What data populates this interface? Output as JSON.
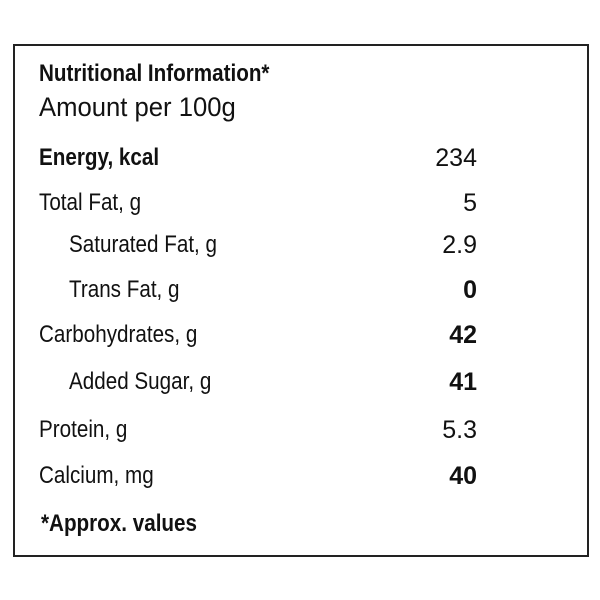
{
  "header": {
    "title": "Nutritional Information*",
    "subtitle": "Amount per 100g"
  },
  "table": {
    "rows": [
      [
        "Energy, kcal",
        234
      ],
      [
        "Total Fat, g",
        5
      ],
      [
        "Saturated Fat, g",
        2.9
      ],
      [
        "Trans Fat, g",
        0
      ],
      [
        "Carbohydrates, g",
        42
      ],
      [
        "Added Sugar, g",
        41
      ],
      [
        "Protein, g",
        5.3
      ],
      [
        "Calcium, mg",
        40
      ]
    ]
  },
  "footnote": "*Approx. values"
}
